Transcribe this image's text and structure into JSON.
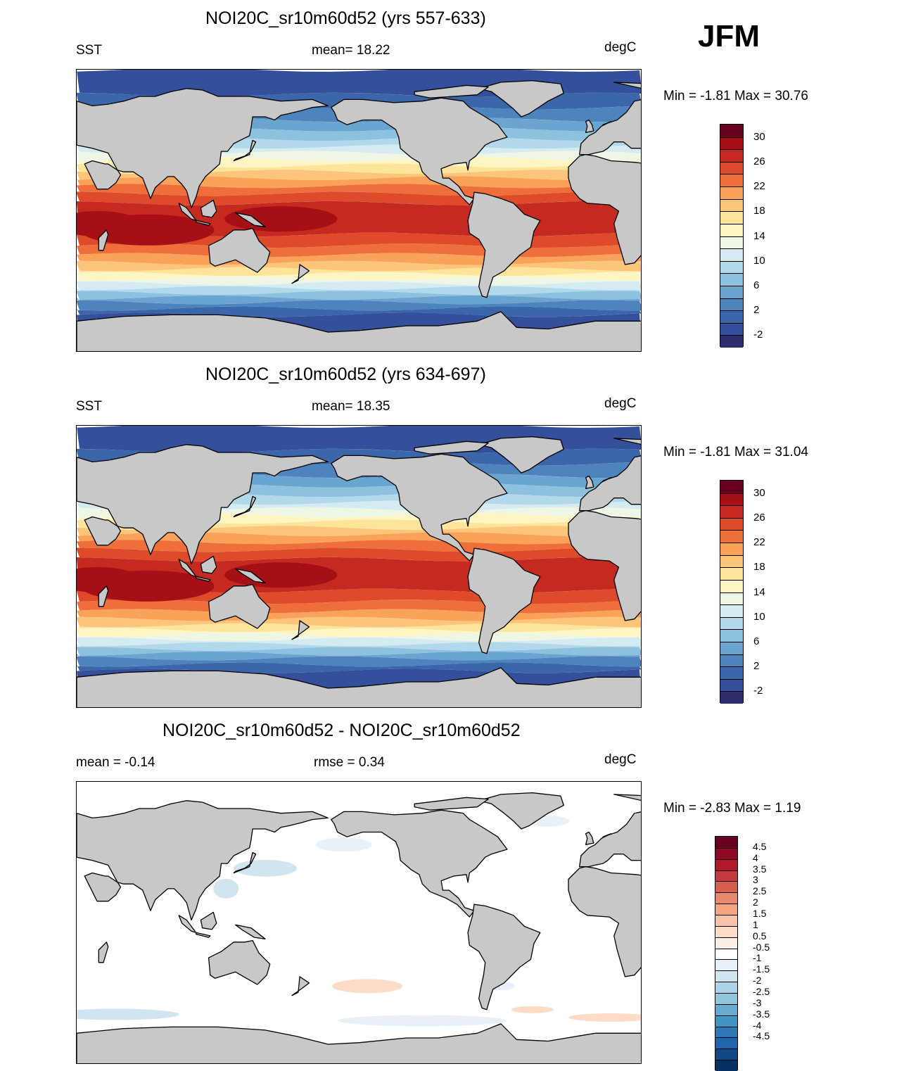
{
  "season": "JFM",
  "panels": [
    {
      "title": "NOI20C_sr10m60d52 (yrs 557-633)",
      "left_label": "SST",
      "center_label": "mean=  18.22",
      "right_label": "degC",
      "minmax": "Min =  -1.81 Max =  30.76",
      "kind": "sst"
    },
    {
      "title": "NOI20C_sr10m60d52 (yrs 634-697)",
      "left_label": "SST",
      "center_label": "mean=  18.35",
      "right_label": "degC",
      "minmax": "Min =  -1.81 Max =  31.04",
      "kind": "sst"
    },
    {
      "title": "NOI20C_sr10m60d52 - NOI20C_sr10m60d52",
      "left_label": "mean =  -0.14",
      "center_label": "rmse =   0.34",
      "right_label": "degC",
      "minmax": "Min =  -2.83 Max =   1.19",
      "kind": "diff"
    }
  ],
  "colorbar_sst": {
    "labels": [
      "30",
      "26",
      "22",
      "18",
      "14",
      "10",
      "6",
      "2",
      "-2"
    ],
    "colors": [
      "#67001f",
      "#a50f15",
      "#c42a1f",
      "#dd4b2b",
      "#ef6f3a",
      "#f9a25a",
      "#fdc57a",
      "#fde49b",
      "#fef5c2",
      "#eef6e5",
      "#d4ebf2",
      "#b2d9ea",
      "#8cc2de",
      "#6aa5cf",
      "#4d84bd",
      "#3b67aa",
      "#34509a",
      "#2d2c6d"
    ]
  },
  "colorbar_diff": {
    "labels": [
      "4.5",
      "4",
      "3.5",
      "3",
      "2.5",
      "2",
      "1.5",
      "1",
      "0.5",
      "-0.5",
      "-1",
      "-1.5",
      "-2",
      "-2.5",
      "-3",
      "-3.5",
      "-4",
      "-4.5"
    ],
    "colors": [
      "#67001f",
      "#8e0a23",
      "#b2182b",
      "#c53a3d",
      "#d6604d",
      "#e68a6e",
      "#f4a582",
      "#f9c3a9",
      "#fddbc7",
      "#fbeee6",
      "#ffffff",
      "#e8f1f7",
      "#d1e5f0",
      "#b0d4e7",
      "#92c5de",
      "#6aaad0",
      "#4393c3",
      "#2f78b4",
      "#2166ac",
      "#0f4a86",
      "#053061"
    ]
  }
}
